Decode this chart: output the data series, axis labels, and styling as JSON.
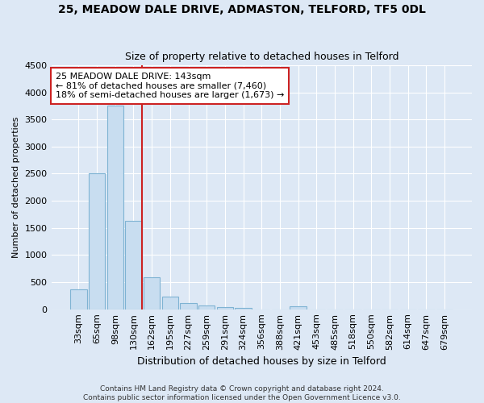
{
  "title": "25, MEADOW DALE DRIVE, ADMASTON, TELFORD, TF5 0DL",
  "subtitle": "Size of property relative to detached houses in Telford",
  "xlabel": "Distribution of detached houses by size in Telford",
  "ylabel": "Number of detached properties",
  "footer_line1": "Contains HM Land Registry data © Crown copyright and database right 2024.",
  "footer_line2": "Contains public sector information licensed under the Open Government Licence v3.0.",
  "categories": [
    "33sqm",
    "65sqm",
    "98sqm",
    "130sqm",
    "162sqm",
    "195sqm",
    "227sqm",
    "259sqm",
    "291sqm",
    "324sqm",
    "356sqm",
    "388sqm",
    "421sqm",
    "453sqm",
    "485sqm",
    "518sqm",
    "550sqm",
    "582sqm",
    "614sqm",
    "647sqm",
    "679sqm"
  ],
  "values": [
    370,
    2500,
    3750,
    1630,
    590,
    230,
    110,
    65,
    40,
    30,
    0,
    0,
    50,
    0,
    0,
    0,
    0,
    0,
    0,
    0,
    0
  ],
  "bar_color": "#c8ddf0",
  "bar_edge_color": "#7fb3d3",
  "vline_index": 3,
  "annotation_text_line1": "25 MEADOW DALE DRIVE: 143sqm",
  "annotation_text_line2": "← 81% of detached houses are smaller (7,460)",
  "annotation_text_line3": "18% of semi-detached houses are larger (1,673) →",
  "annotation_box_facecolor": "#ffffff",
  "annotation_box_edgecolor": "#cc2222",
  "vline_color": "#cc2222",
  "ylim": [
    0,
    4500
  ],
  "yticks": [
    0,
    500,
    1000,
    1500,
    2000,
    2500,
    3000,
    3500,
    4000,
    4500
  ],
  "background_color": "#dde8f5",
  "grid_color": "#ffffff",
  "title_fontsize": 10,
  "subtitle_fontsize": 9,
  "ylabel_fontsize": 8,
  "xlabel_fontsize": 9,
  "tick_fontsize": 8,
  "footer_fontsize": 6.5
}
